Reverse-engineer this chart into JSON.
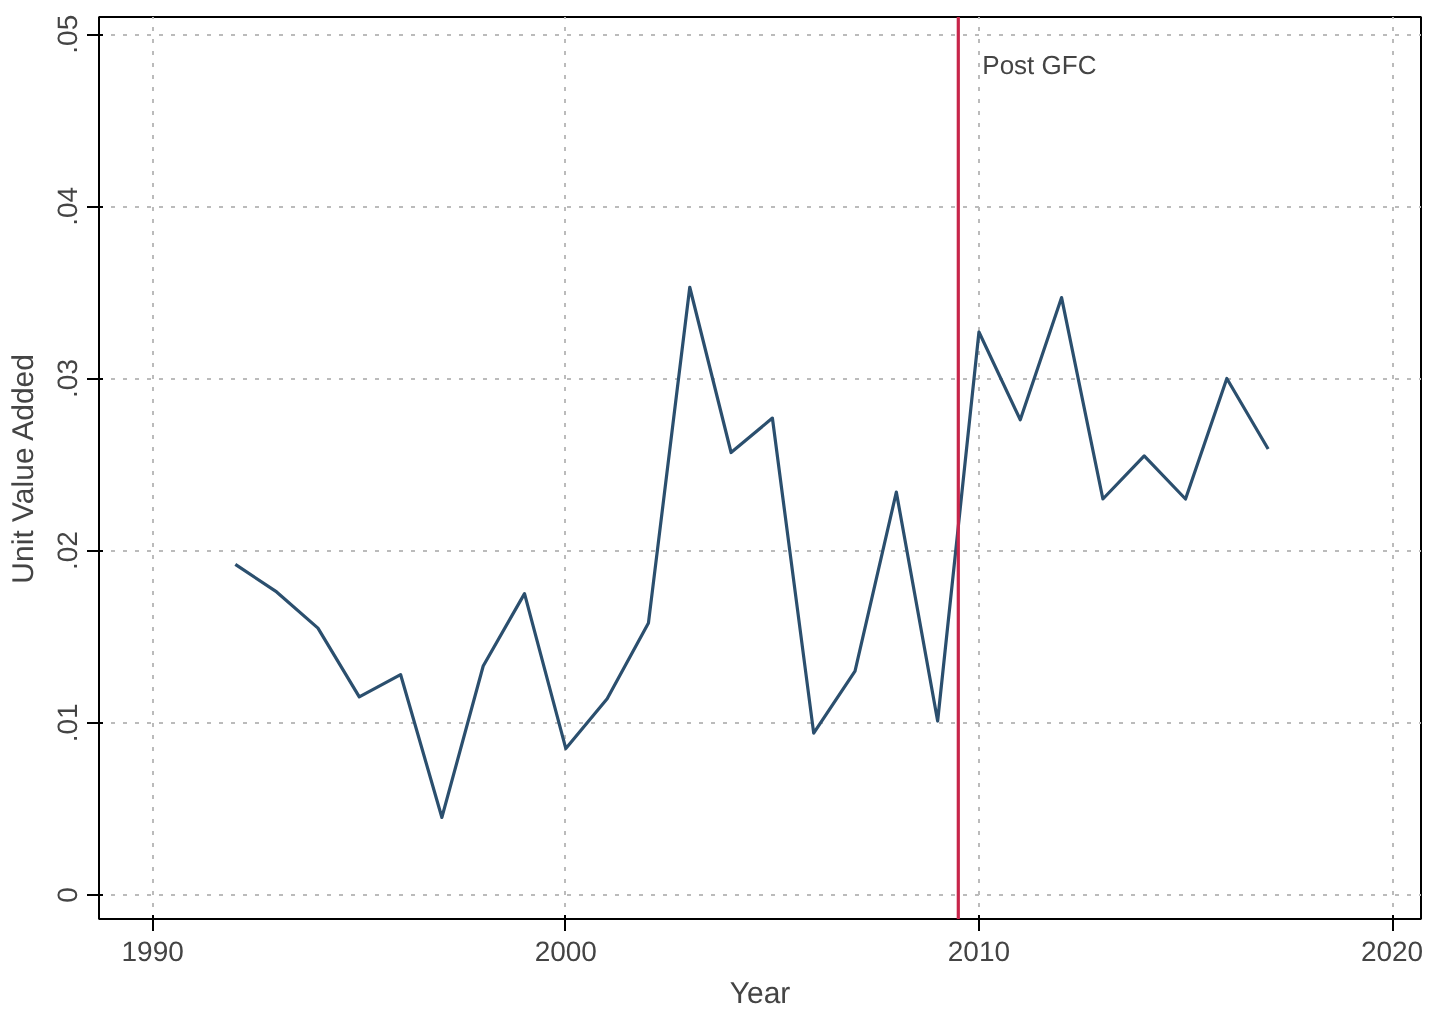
{
  "chart_data": {
    "type": "line",
    "xlabel": "Year",
    "ylabel": "Unit Value Added",
    "x": [
      1992,
      1993,
      1994,
      1995,
      1996,
      1997,
      1998,
      1999,
      2000,
      2001,
      2002,
      2003,
      2004,
      2005,
      2006,
      2007,
      2008,
      2009,
      2010,
      2011,
      2012,
      2013,
      2014,
      2015,
      2016,
      2017
    ],
    "series": [
      {
        "color": "#2b4f6e",
        "values": [
          0.0192,
          0.0176,
          0.0155,
          0.0115,
          0.0128,
          0.0045,
          0.0133,
          0.0175,
          0.0085,
          0.0114,
          0.0158,
          0.0353,
          0.0257,
          0.0277,
          0.0094,
          0.013,
          0.0234,
          0.0101,
          0.0327,
          0.0276,
          0.0347,
          0.023,
          0.0255,
          0.023,
          0.03,
          0.0259
        ]
      }
    ],
    "xlim": [
      1988.7,
      2020.7
    ],
    "ylim": [
      -0.0014,
      0.051
    ],
    "xticks": [
      1990,
      2000,
      2010,
      2020
    ],
    "yticks": [
      0,
      {
        "value": 0.01,
        "label": ".01"
      },
      {
        "value": 0.02,
        "label": ".02"
      },
      {
        "value": 0.03,
        "label": ".03"
      },
      {
        "value": 0.04,
        "label": ".04"
      },
      {
        "value": 0.05,
        "label": ".05"
      }
    ],
    "ref_lines": [
      {
        "axis": "x",
        "value": 2009.5,
        "label": "Post GFC",
        "color": "#c8254a"
      }
    ],
    "grid": true,
    "marker": "none",
    "line_style": "solid"
  }
}
